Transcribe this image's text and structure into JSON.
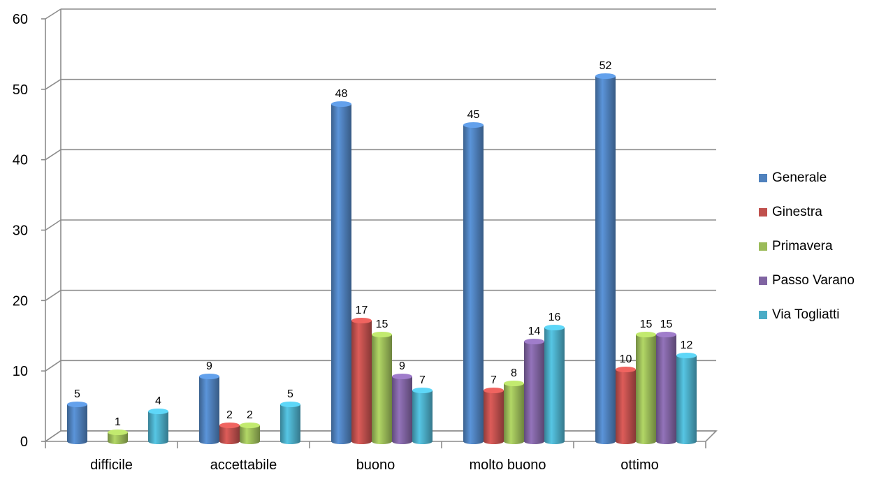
{
  "chart_data": {
    "type": "bar",
    "categories": [
      "difficile",
      "accettabile",
      "buono",
      "molto buono",
      "ottimo"
    ],
    "series": [
      {
        "name": "Generale",
        "color": "#4F81BD",
        "values": [
          5,
          9,
          48,
          45,
          52
        ]
      },
      {
        "name": "Ginestra",
        "color": "#C0504D",
        "values": [
          null,
          2,
          17,
          7,
          10
        ]
      },
      {
        "name": "Primavera",
        "color": "#9BBB59",
        "values": [
          1,
          2,
          15,
          8,
          15
        ]
      },
      {
        "name": "Passo Varano",
        "color": "#8064A2",
        "values": [
          null,
          null,
          9,
          14,
          15
        ]
      },
      {
        "name": "Via Togliatti",
        "color": "#4BACC6",
        "values": [
          4,
          5,
          7,
          16,
          12
        ]
      }
    ],
    "yticks": [
      "0",
      "10",
      "20",
      "30",
      "40",
      "50",
      "60"
    ],
    "ylim": [
      0,
      60
    ],
    "grid": true,
    "legend_position": "right",
    "data_labels": true
  }
}
